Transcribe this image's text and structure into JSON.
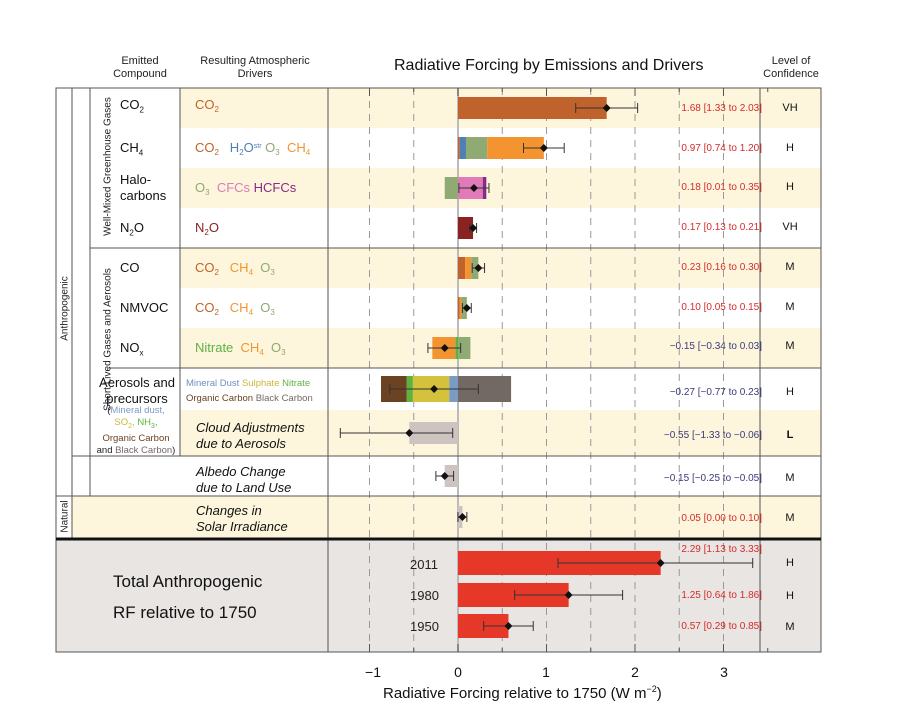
{
  "header": {
    "emitted": "Emitted Compound",
    "emitted_l1": "Emitted",
    "emitted_l2": "Compound",
    "drivers_l1": "Resulting Atmospheric",
    "drivers_l2": "Drivers",
    "confidence_l1": "Level of",
    "confidence_l2": "Confidence"
  },
  "side_labels": {
    "anthropogenic": "Anthropogenic",
    "well_mixed": "Well-Mixed Greenhouse Gases",
    "short_lived": "Short Lived Gases and Aerosols",
    "natural": "Natural"
  },
  "colors": {
    "row_tint": "#fdf6dc",
    "total_bg": "#e8e5e3",
    "positive_text": "#d62b2b",
    "negative_text": "#3a3a7a",
    "co2": "#c0622b",
    "h2o": "#4e7fb5",
    "o3": "#8faa72",
    "ch4": "#f39430",
    "cfc": "#e07ab8",
    "hcfc": "#8b2a86",
    "n2o": "#8a2222",
    "nitrate": "#5db340",
    "mineral_dust": "#7b9ac4",
    "sulphate": "#d4c23c",
    "organic_carbon": "#6b4222",
    "black_carbon": "#736964",
    "cloud": "#cdc3c1",
    "total": "#e53828"
  },
  "rows": [
    {
      "compound": "CO",
      "compound_sub": "2",
      "drivers": [
        {
          "t": "CO",
          "s": "2",
          "c": "#c0622b"
        }
      ],
      "value_text": "1.68 [1.33 to 2.03]",
      "confidence": "VH"
    },
    {
      "compound": "CH",
      "compound_sub": "4",
      "drivers": [
        {
          "t": "CO",
          "s": "2",
          "c": "#c0622b"
        },
        {
          "t": "H",
          "s": "2",
          "t2": "O",
          "sup": "str",
          "c": "#4e7fb5"
        },
        {
          "t": "O",
          "s": "3",
          "c": "#8faa72"
        },
        {
          "t": "CH",
          "s": "4",
          "c": "#f39430"
        }
      ],
      "value_text": "0.97 [0.74 to 1.20]",
      "confidence": "H"
    },
    {
      "compound": "Halo-",
      "compound2": "carbons",
      "drivers": [
        {
          "t": "O",
          "s": "3",
          "c": "#8faa72"
        },
        {
          "t": "CFCs",
          "c": "#e07ab8"
        },
        {
          "t": "HCFCs",
          "c": "#8b2a86"
        }
      ],
      "value_text": "0.18 [0.01 to 0.35]",
      "confidence": "H"
    },
    {
      "compound": "N",
      "compound_sub": "2",
      "compound_tail": "O",
      "drivers": [
        {
          "t": "N",
          "s": "2",
          "t2": "O",
          "c": "#8a2222"
        }
      ],
      "value_text": "0.17 [0.13 to 0.21]",
      "confidence": "VH"
    },
    {
      "compound": "CO",
      "drivers": [
        {
          "t": "CO",
          "s": "2",
          "c": "#c0622b"
        },
        {
          "t": "CH",
          "s": "4",
          "c": "#f39430"
        },
        {
          "t": "O",
          "s": "3",
          "c": "#8faa72"
        }
      ],
      "value_text": "0.23 [0.16 to 0.30]",
      "confidence": "M"
    },
    {
      "compound": "NMVOC",
      "drivers": [
        {
          "t": "CO",
          "s": "2",
          "c": "#c0622b"
        },
        {
          "t": "CH",
          "s": "4",
          "c": "#f39430"
        },
        {
          "t": "O",
          "s": "3",
          "c": "#8faa72"
        }
      ],
      "value_text": "0.10 [0.05 to 0.15]",
      "confidence": "M"
    },
    {
      "compound": "NO",
      "compound_sub": "x",
      "drivers": [
        {
          "t": "Nitrate",
          "c": "#5db340"
        },
        {
          "t": "CH",
          "s": "4",
          "c": "#f39430"
        },
        {
          "t": "O",
          "s": "3",
          "c": "#8faa72"
        }
      ],
      "value_text": "−0.15 [−0.34 to 0.03]",
      "confidence": "M"
    },
    {
      "compound": "Aerosols and",
      "compound2": "precursors",
      "drivers_l1": [
        {
          "t": "Mineral Dust",
          "c": "#6f8fc0"
        },
        {
          "t": "Sulphate",
          "c": "#c9b83a"
        },
        {
          "t": "Nitrate",
          "c": "#5db340"
        }
      ],
      "drivers_l2": [
        {
          "t": "Organic Carbon",
          "c": "#6b4222"
        },
        {
          "t": "Black Carbon",
          "c": "#736964"
        }
      ],
      "value_text": "−0.27 [−0.77 to 0.23]",
      "confidence": "H"
    },
    {
      "driver_italic_l1": "Cloud Adjustments",
      "driver_italic_l2": "due to Aerosols",
      "value_text": "−0.55 [−1.33 to −0.06]",
      "confidence": "L"
    },
    {
      "driver_italic_l1": "Albedo Change",
      "driver_italic_l2": "due to Land Use",
      "value_text": "−0.15 [−0.25 to −0.05]",
      "confidence": "M"
    },
    {
      "driver_italic_l1": "Changes in",
      "driver_italic_l2": "Solar Irradiance",
      "value_text": "0.05 [0.00 to 0.10]",
      "confidence": "M"
    }
  ],
  "aerosol_precursors": {
    "open": "(",
    "mineral_dust": "Mineral dust,",
    "so2": "SO",
    "so2_sub": "2",
    "nh3": "NH",
    "nh3_sub": "3",
    "organic": "Organic Carbon",
    "and": "and",
    "black": "Black Carbon",
    "close": ")"
  },
  "total": {
    "label_l1": "Total Anthropogenic",
    "label_l2": "RF relative to 1750",
    "years": [
      {
        "year": "2011",
        "value_text": "2.29 [1.13 to 3.33]",
        "confidence": "H"
      },
      {
        "year": "1980",
        "value_text": "1.25 [0.64 to 1.86]",
        "confidence": "H"
      },
      {
        "year": "1950",
        "value_text": "0.57 [0.29 to 0.85]",
        "confidence": "M"
      }
    ]
  },
  "chart_data": {
    "type": "bar",
    "orientation": "horizontal-stacked",
    "title": "Radiative Forcing by Emissions and Drivers",
    "xlabel": "Radiative Forcing relative to 1750 (W m⁻²)",
    "xlabel_main": "Radiative Forcing relative to 1750 (W m",
    "xlabel_sup": "−2",
    "xlabel_close": ")",
    "xlim": [
      -1.35,
      3.5
    ],
    "xticks": [
      -1,
      0,
      1,
      2,
      3
    ],
    "xtick_labels": [
      "−1",
      "0",
      "1",
      "2",
      "3"
    ],
    "grid": "dashed vertical at 0.5 steps",
    "categories": [
      "CO2",
      "CH4",
      "Halocarbons",
      "N2O",
      "CO",
      "NMVOC",
      "NOx",
      "Aerosols and precursors",
      "Cloud Adjustments due to Aerosols",
      "Albedo Change due to Land Use",
      "Changes in Solar Irradiance",
      "Total 2011",
      "Total 1980",
      "Total 1950"
    ],
    "bars": [
      {
        "category": "CO2",
        "components": [
          {
            "name": "CO2",
            "value": 1.68,
            "color": "#c0622b"
          }
        ],
        "best": 1.68,
        "range": [
          1.33,
          2.03
        ]
      },
      {
        "category": "CH4",
        "components": [
          {
            "name": "CO2",
            "value": 0.02,
            "color": "#c0622b"
          },
          {
            "name": "H2Ostr",
            "value": 0.07,
            "color": "#4e7fb5"
          },
          {
            "name": "O3",
            "value": 0.24,
            "color": "#8faa72"
          },
          {
            "name": "CH4",
            "value": 0.64,
            "color": "#f39430"
          }
        ],
        "best": 0.97,
        "range": [
          0.74,
          1.2
        ]
      },
      {
        "category": "Halocarbons",
        "components": [
          {
            "name": "O3",
            "value": -0.15,
            "color": "#8faa72"
          },
          {
            "name": "CFCs",
            "value": 0.28,
            "color": "#e07ab8"
          },
          {
            "name": "HCFCs",
            "value": 0.04,
            "color": "#8b2a86"
          }
        ],
        "best": 0.18,
        "range": [
          0.01,
          0.35
        ]
      },
      {
        "category": "N2O",
        "components": [
          {
            "name": "N2O",
            "value": 0.17,
            "color": "#8a2222"
          }
        ],
        "best": 0.17,
        "range": [
          0.13,
          0.21
        ]
      },
      {
        "category": "CO",
        "components": [
          {
            "name": "CO2",
            "value": 0.08,
            "color": "#c0622b"
          },
          {
            "name": "CH4",
            "value": 0.07,
            "color": "#f39430"
          },
          {
            "name": "O3",
            "value": 0.08,
            "color": "#8faa72"
          }
        ],
        "best": 0.23,
        "range": [
          0.16,
          0.3
        ]
      },
      {
        "category": "NMVOC",
        "components": [
          {
            "name": "CO2",
            "value": 0.02,
            "color": "#c0622b"
          },
          {
            "name": "CH4",
            "value": 0.02,
            "color": "#f39430"
          },
          {
            "name": "O3",
            "value": 0.06,
            "color": "#8faa72"
          }
        ],
        "best": 0.1,
        "range": [
          0.05,
          0.15
        ]
      },
      {
        "category": "NOx",
        "components": [
          {
            "name": "Nitrate",
            "value": -0.03,
            "color": "#5db340"
          },
          {
            "name": "CH4",
            "value": -0.26,
            "color": "#f39430"
          },
          {
            "name": "O3",
            "value": 0.14,
            "color": "#8faa72"
          }
        ],
        "best": -0.15,
        "range": [
          -0.34,
          0.03
        ]
      },
      {
        "category": "Aerosols and precursors",
        "components": [
          {
            "name": "Mineral Dust",
            "value": -0.1,
            "color": "#7b9ac4"
          },
          {
            "name": "Sulphate",
            "value": -0.41,
            "color": "#d4c23c"
          },
          {
            "name": "Nitrate",
            "value": -0.07,
            "color": "#5db340"
          },
          {
            "name": "Organic Carbon",
            "value": -0.29,
            "color": "#6b4222"
          },
          {
            "name": "Black Carbon",
            "value": 0.6,
            "color": "#736964"
          }
        ],
        "best": -0.27,
        "range": [
          -0.77,
          0.23
        ]
      },
      {
        "category": "Cloud Adjustments due to Aerosols",
        "components": [
          {
            "name": "Cloud",
            "value": -0.55,
            "color": "#cdc3c1"
          }
        ],
        "best": -0.55,
        "range": [
          -1.33,
          -0.06
        ]
      },
      {
        "category": "Albedo Change due to Land Use",
        "components": [
          {
            "name": "Albedo",
            "value": -0.15,
            "color": "#cdc3c1"
          }
        ],
        "best": -0.15,
        "range": [
          -0.25,
          -0.05
        ]
      },
      {
        "category": "Changes in Solar Irradiance",
        "components": [
          {
            "name": "Solar",
            "value": 0.05,
            "color": "#cdc3c1"
          }
        ],
        "best": 0.05,
        "range": [
          0.0,
          0.1
        ]
      },
      {
        "category": "Total 2011",
        "components": [
          {
            "name": "2011",
            "value": 2.29,
            "color": "#e53828"
          }
        ],
        "best": 2.29,
        "range": [
          1.13,
          3.33
        ]
      },
      {
        "category": "Total 1980",
        "components": [
          {
            "name": "1980",
            "value": 1.25,
            "color": "#e53828"
          }
        ],
        "best": 1.25,
        "range": [
          0.64,
          1.86
        ]
      },
      {
        "category": "Total 1950",
        "components": [
          {
            "name": "1950",
            "value": 0.57,
            "color": "#e53828"
          }
        ],
        "best": 0.57,
        "range": [
          0.29,
          0.85
        ]
      }
    ]
  }
}
